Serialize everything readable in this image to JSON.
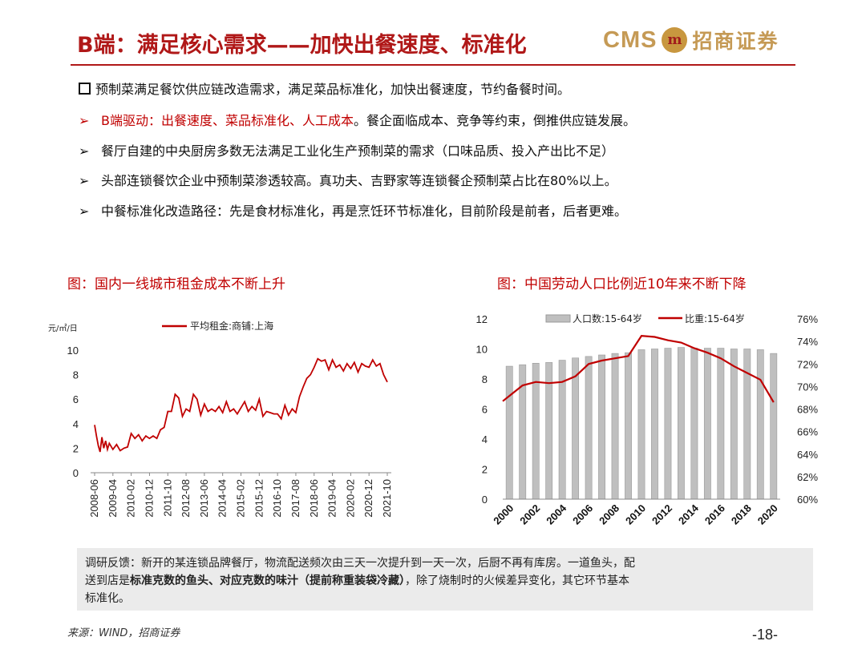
{
  "header": {
    "title": "B端：满足核心需求——加快出餐速度、标准化",
    "logo_cms": "CMS",
    "logo_mark": "m",
    "logo_cn": "招商证券"
  },
  "bullets": [
    {
      "marker": "box",
      "segments": [
        {
          "text": "预制菜满足餐饮供应链改造需求，满足菜品标准化，加快出餐速度，节约备餐时间。",
          "emph": false
        }
      ]
    },
    {
      "marker": "➢",
      "segments": [
        {
          "text": "B端驱动：出餐速度、菜品标准化、人工成本",
          "emph": true
        },
        {
          "text": "。餐企面临成本、竞争等约束，倒推供应链发展。",
          "emph": false
        }
      ]
    },
    {
      "marker": "➢",
      "segments": [
        {
          "text": "餐厅自建的中央厨房多数无法满足工业化生产预制菜的需求（口味品质、投入产出比不足）",
          "emph": false
        }
      ]
    },
    {
      "marker": "➢",
      "segments": [
        {
          "text": "头部连锁餐饮企业中预制菜渗透较高。真功夫、吉野家等连锁餐企预制菜占比在80%以上。",
          "emph": false
        }
      ]
    },
    {
      "marker": "➢",
      "segments": [
        {
          "text": "中餐标准化改造路径：先是食材标准化，再是烹饪环节标准化，目前阶段是前者，后者更难。",
          "emph": false
        }
      ]
    }
  ],
  "chart_data": [
    {
      "type": "line",
      "caption": "图：国内一线城市租金成本不断上升",
      "unit_label": "元/㎡/日",
      "series": [
        {
          "name": "平均租金:商铺:上海",
          "color": "#c00000",
          "x_months": [
            0,
            1,
            2,
            3,
            4,
            5,
            6,
            7,
            8,
            10,
            12,
            14,
            16,
            18,
            20,
            22,
            24,
            26,
            28,
            30,
            32,
            34,
            36,
            38,
            40,
            42,
            44,
            46,
            48,
            50,
            52,
            54,
            56,
            58,
            60,
            62,
            64,
            66,
            68,
            70,
            72,
            74,
            76,
            78,
            80,
            82,
            84,
            86,
            88,
            90,
            92,
            94,
            96,
            98,
            100,
            102,
            104,
            106,
            108,
            110,
            112,
            114,
            116,
            118,
            120,
            122,
            124,
            126,
            128,
            130,
            132,
            134,
            136,
            138,
            140,
            142,
            144,
            146,
            148,
            150,
            152,
            154,
            156,
            158,
            160
          ],
          "values": [
            3.9,
            3.0,
            2.2,
            1.7,
            2.9,
            2.0,
            2.6,
            1.9,
            2.4,
            1.9,
            2.3,
            1.8,
            2.0,
            2.1,
            3.2,
            2.8,
            3.1,
            2.6,
            3.0,
            2.8,
            3.0,
            2.8,
            3.5,
            3.7,
            5.0,
            5.0,
            6.4,
            6.1,
            4.6,
            5.2,
            5.0,
            6.4,
            6.0,
            4.7,
            5.6,
            5.0,
            5.2,
            5.0,
            5.4,
            4.9,
            5.8,
            5.0,
            5.2,
            4.8,
            5.3,
            5.8,
            5.0,
            5.4,
            5.1,
            6.0,
            4.6,
            5.0,
            4.9,
            4.8,
            4.8,
            4.4,
            5.5,
            4.7,
            5.2,
            4.9,
            6.2,
            7.0,
            7.7,
            8.0,
            8.6,
            9.3,
            9.1,
            9.2,
            8.4,
            9.2,
            8.6,
            8.8,
            8.3,
            8.9,
            8.5,
            9.0,
            8.2,
            8.9,
            8.7,
            8.6,
            9.2,
            8.7,
            8.9,
            8.0,
            7.4
          ]
        }
      ],
      "y_ticks": [
        "0",
        "2",
        "4",
        "6",
        "8",
        "10"
      ],
      "ylim": [
        0,
        10
      ],
      "x_ticks": [
        "2008-06",
        "2009-04",
        "2010-02",
        "2010-12",
        "2011-10",
        "2012-08",
        "2013-06",
        "2014-04",
        "2015-02",
        "2015-12",
        "2016-10",
        "2017-08",
        "2018-06",
        "2019-04",
        "2020-02",
        "2020-12",
        "2021-10"
      ],
      "x_tick_months": [
        0,
        10,
        20,
        30,
        40,
        50,
        60,
        70,
        80,
        90,
        100,
        110,
        120,
        130,
        140,
        150,
        160
      ]
    },
    {
      "type": "bar+line",
      "caption": "图：中国劳动人口比例近10年来不断下降",
      "categories": [
        2000,
        2001,
        2002,
        2003,
        2004,
        2005,
        2006,
        2007,
        2008,
        2009,
        2010,
        2011,
        2012,
        2013,
        2014,
        2015,
        2016,
        2017,
        2018,
        2019,
        2020
      ],
      "bar_series": {
        "name": "人口数:15-64岁",
        "color": "#bfbfbf",
        "axis": "left",
        "values": [
          8.85,
          8.95,
          9.05,
          9.1,
          9.25,
          9.4,
          9.5,
          9.6,
          9.7,
          9.75,
          9.95,
          10.0,
          10.05,
          10.1,
          10.05,
          10.05,
          10.05,
          10.0,
          10.0,
          9.95,
          9.7
        ]
      },
      "line_series": {
        "name": "比重:15-64岁",
        "color": "#c00000",
        "axis": "right",
        "values": [
          68.7,
          70.1,
          70.4,
          70.3,
          70.4,
          70.9,
          72.0,
          72.3,
          72.5,
          72.7,
          74.5,
          74.4,
          74.1,
          73.9,
          73.4,
          73.0,
          72.5,
          71.8,
          71.2,
          70.6,
          68.6
        ]
      },
      "left_ticks": [
        "0",
        "2",
        "4",
        "6",
        "8",
        "10",
        "12"
      ],
      "left_ylim": [
        0,
        12
      ],
      "right_ticks": [
        "60%",
        "62%",
        "64%",
        "66%",
        "68%",
        "70%",
        "72%",
        "74%",
        "76%"
      ],
      "right_ylim": [
        60,
        76
      ],
      "x_ticks": [
        "2000",
        "2002",
        "2004",
        "2006",
        "2008",
        "2010",
        "2012",
        "2014",
        "2016",
        "2018",
        "2020"
      ]
    }
  ],
  "note": {
    "line1": "调研反馈：新开的某连锁品牌餐厅，物流配送频次由三天一次提升到一天一次，后厨不再有库房。一道鱼头，配",
    "line2_a": "送到店是",
    "line2_b": "标准克数的鱼头、对应克数的味汁（提前称重装袋冷藏）",
    "line2_c": "，除了烧制时的火候差异变化，其它环节基本",
    "line3": "标准化。"
  },
  "footer": {
    "source": "来源：WIND，招商证券",
    "page": "-18-"
  }
}
